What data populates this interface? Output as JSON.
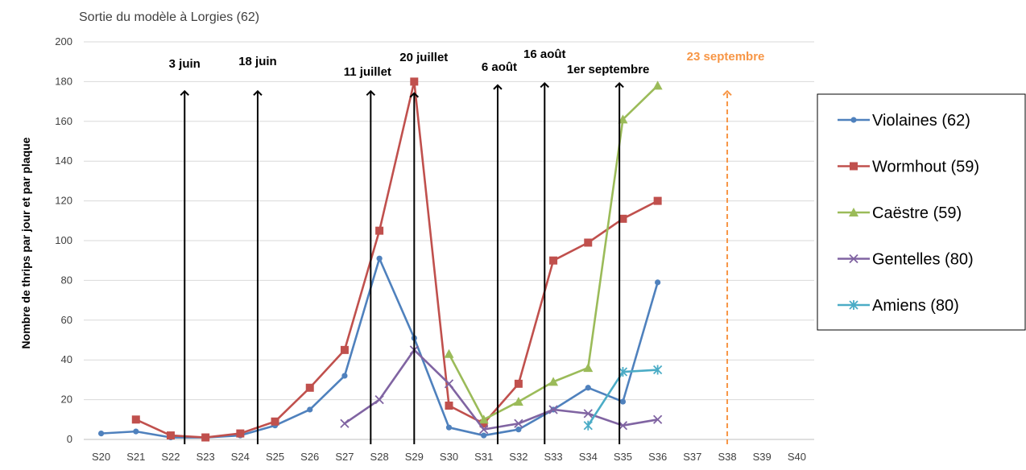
{
  "chart_data": {
    "type": "line",
    "title": "Sortie du modèle à Lorgies (62)",
    "xlabel": "",
    "ylabel": "Nombre de thrips par jour et par plaque",
    "ylim": [
      0,
      200
    ],
    "yticks": [
      0,
      20,
      40,
      60,
      80,
      100,
      120,
      140,
      160,
      180,
      200
    ],
    "categories": [
      "S20",
      "S21",
      "S22",
      "S23",
      "S24",
      "S25",
      "S26",
      "S27",
      "S28",
      "S29",
      "S30",
      "S31",
      "S32",
      "S33",
      "S34",
      "S35",
      "S36",
      "S37",
      "S38",
      "S39",
      "S40"
    ],
    "grid": true,
    "legend_position": "right",
    "series": [
      {
        "name": "Violaines (62)",
        "color": "#4f81bd",
        "marker": "circle",
        "values": [
          3,
          4,
          1,
          1,
          2,
          7,
          15,
          32,
          91,
          51,
          6,
          2,
          5,
          15,
          26,
          19,
          79,
          null,
          null,
          null,
          null
        ]
      },
      {
        "name": "Wormhout (59)",
        "color": "#c0504d",
        "marker": "square",
        "values": [
          null,
          10,
          2,
          1,
          3,
          9,
          26,
          45,
          105,
          180,
          17,
          8,
          28,
          90,
          99,
          111,
          120,
          null,
          null,
          null,
          null
        ]
      },
      {
        "name": "Caëstre (59)",
        "color": "#9bbb59",
        "marker": "triangle",
        "values": [
          null,
          null,
          null,
          null,
          null,
          null,
          null,
          null,
          null,
          null,
          43,
          10,
          19,
          29,
          36,
          161,
          178,
          null,
          null,
          null,
          null
        ]
      },
      {
        "name": "Gentelles (80)",
        "color": "#8064a2",
        "marker": "x",
        "values": [
          null,
          null,
          null,
          null,
          null,
          null,
          null,
          8,
          20,
          45,
          28,
          5,
          8,
          15,
          13,
          7,
          10,
          null,
          null,
          null,
          null
        ]
      },
      {
        "name": "Amiens (80)",
        "color": "#4bacc6",
        "marker": "star",
        "values": [
          null,
          null,
          null,
          null,
          null,
          null,
          null,
          null,
          null,
          null,
          null,
          null,
          null,
          null,
          7,
          34,
          35,
          null,
          null,
          null,
          null
        ]
      }
    ],
    "annotations": [
      {
        "text": "3 juin",
        "x": 22.4,
        "y_top": 176,
        "color": "#000000",
        "dashed": false
      },
      {
        "text": "18 juin",
        "x": 24.5,
        "y_top": 176,
        "color": "#000000",
        "dashed": false
      },
      {
        "text": "11 juillet",
        "x": 27.75,
        "y_top": 176,
        "color": "#000000",
        "dashed": false
      },
      {
        "text": "20 juillet",
        "x": 29.0,
        "y_top": 175,
        "color": "#000000",
        "dashed": false
      },
      {
        "text": "6 août",
        "x": 31.4,
        "y_top": 179,
        "color": "#000000",
        "dashed": false
      },
      {
        "text": "16 août",
        "x": 32.75,
        "y_top": 180,
        "color": "#000000",
        "dashed": false
      },
      {
        "text": "1er septembre",
        "x": 34.9,
        "y_top": 180,
        "color": "#000000",
        "dashed": false
      },
      {
        "text": "23 septembre",
        "x": 38.0,
        "y_top": 176,
        "color": "#f79646",
        "dashed": true
      }
    ]
  }
}
